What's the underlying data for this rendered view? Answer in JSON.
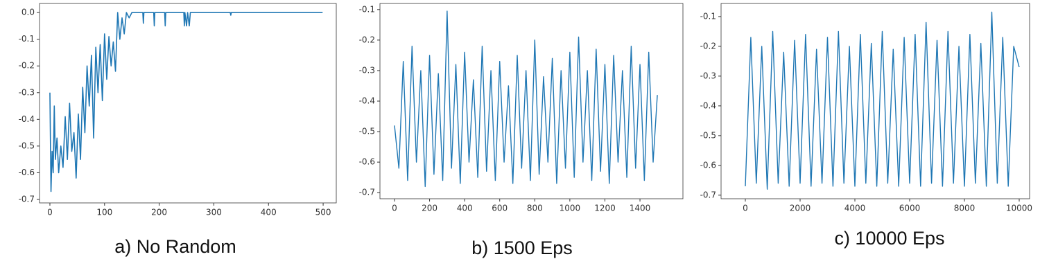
{
  "chart_data": [
    {
      "type": "line",
      "caption": "a) No Random",
      "color": "#1f77b4",
      "x": [
        0,
        2,
        4,
        6,
        8,
        10,
        13,
        16,
        20,
        24,
        28,
        32,
        36,
        40,
        44,
        48,
        52,
        56,
        60,
        64,
        68,
        72,
        76,
        80,
        84,
        88,
        92,
        96,
        100,
        104,
        108,
        112,
        116,
        120,
        124,
        128,
        132,
        136,
        140,
        145,
        150,
        170,
        171,
        172,
        190,
        191,
        192,
        210,
        211,
        212,
        245,
        246,
        247,
        250,
        252,
        255,
        257,
        330,
        331,
        332,
        499
      ],
      "values": [
        -0.3,
        -0.67,
        -0.52,
        -0.6,
        -0.35,
        -0.55,
        -0.47,
        -0.6,
        -0.5,
        -0.58,
        -0.39,
        -0.55,
        -0.34,
        -0.52,
        -0.45,
        -0.62,
        -0.38,
        -0.55,
        -0.28,
        -0.45,
        -0.2,
        -0.35,
        -0.16,
        -0.47,
        -0.13,
        -0.3,
        -0.12,
        -0.33,
        -0.08,
        -0.25,
        -0.09,
        -0.2,
        -0.11,
        -0.22,
        0,
        -0.1,
        -0.02,
        -0.08,
        0,
        -0.02,
        0,
        0,
        -0.04,
        0,
        0,
        -0.05,
        0,
        0,
        -0.05,
        0,
        0,
        -0.05,
        0,
        -0.05,
        0,
        -0.05,
        0,
        0,
        -0.01,
        0,
        0
      ],
      "xlim": [
        -19,
        524
      ],
      "ylim": [
        -0.713,
        0.034
      ],
      "xticks": [
        0,
        100,
        200,
        300,
        400,
        500
      ],
      "yticks": [
        {
          "value": 0,
          "label": "0.0"
        },
        -0.1,
        -0.2,
        -0.3,
        -0.4,
        -0.5,
        -0.6,
        -0.7
      ]
    },
    {
      "type": "line",
      "caption": "b) 1500 Eps",
      "color": "#1f77b4",
      "x": [
        0,
        25,
        50,
        75,
        100,
        125,
        150,
        175,
        200,
        225,
        250,
        275,
        300,
        325,
        350,
        375,
        400,
        425,
        450,
        475,
        500,
        525,
        550,
        575,
        600,
        625,
        650,
        675,
        700,
        725,
        750,
        775,
        800,
        825,
        850,
        875,
        900,
        925,
        950,
        975,
        1000,
        1025,
        1050,
        1075,
        1100,
        1125,
        1150,
        1175,
        1200,
        1225,
        1250,
        1275,
        1300,
        1325,
        1350,
        1375,
        1400,
        1425,
        1450,
        1475,
        1499
      ],
      "values": [
        -0.48,
        -0.62,
        -0.27,
        -0.66,
        -0.22,
        -0.6,
        -0.3,
        -0.68,
        -0.25,
        -0.64,
        -0.31,
        -0.66,
        -0.105,
        -0.62,
        -0.28,
        -0.67,
        -0.24,
        -0.6,
        -0.33,
        -0.65,
        -0.22,
        -0.63,
        -0.3,
        -0.66,
        -0.27,
        -0.6,
        -0.35,
        -0.67,
        -0.25,
        -0.62,
        -0.3,
        -0.66,
        -0.2,
        -0.64,
        -0.32,
        -0.6,
        -0.26,
        -0.67,
        -0.3,
        -0.62,
        -0.24,
        -0.65,
        -0.19,
        -0.6,
        -0.3,
        -0.66,
        -0.23,
        -0.63,
        -0.28,
        -0.67,
        -0.25,
        -0.6,
        -0.3,
        -0.65,
        -0.22,
        -0.62,
        -0.28,
        -0.66,
        -0.24,
        -0.6,
        -0.38
      ],
      "xlim": [
        -83,
        1645
      ],
      "ylim": [
        -0.72,
        -0.08
      ],
      "xticks": [
        0,
        200,
        400,
        600,
        800,
        1000,
        1200,
        1400
      ],
      "yticks": [
        -0.1,
        -0.2,
        -0.3,
        -0.4,
        -0.5,
        -0.6,
        -0.7
      ]
    },
    {
      "type": "line",
      "caption": "c) 10000 Eps",
      "color": "#1f77b4",
      "x": [
        0,
        200,
        400,
        600,
        800,
        1000,
        1200,
        1400,
        1600,
        1800,
        2000,
        2200,
        2400,
        2600,
        2800,
        3000,
        3200,
        3400,
        3600,
        3800,
        4000,
        4200,
        4400,
        4600,
        4800,
        5000,
        5200,
        5400,
        5600,
        5800,
        6000,
        6200,
        6400,
        6600,
        6800,
        7000,
        7200,
        7400,
        7600,
        7800,
        8000,
        8200,
        8400,
        8600,
        8800,
        9000,
        9200,
        9400,
        9600,
        9800,
        10000
      ],
      "values": [
        -0.67,
        -0.17,
        -0.66,
        -0.2,
        -0.68,
        -0.15,
        -0.66,
        -0.22,
        -0.67,
        -0.18,
        -0.66,
        -0.16,
        -0.67,
        -0.21,
        -0.66,
        -0.17,
        -0.67,
        -0.15,
        -0.66,
        -0.2,
        -0.67,
        -0.16,
        -0.66,
        -0.19,
        -0.67,
        -0.15,
        -0.66,
        -0.21,
        -0.67,
        -0.17,
        -0.66,
        -0.16,
        -0.67,
        -0.12,
        -0.66,
        -0.18,
        -0.67,
        -0.15,
        -0.66,
        -0.2,
        -0.67,
        -0.16,
        -0.66,
        -0.19,
        -0.67,
        -0.085,
        -0.66,
        -0.17,
        -0.67,
        -0.2,
        -0.27
      ],
      "xlim": [
        -886,
        10380
      ],
      "ylim": [
        -0.712,
        -0.056
      ],
      "xticks": [
        0,
        2000,
        4000,
        6000,
        8000,
        10000
      ],
      "yticks": [
        -0.1,
        -0.2,
        -0.3,
        -0.4,
        -0.5,
        -0.6,
        -0.7
      ]
    }
  ]
}
